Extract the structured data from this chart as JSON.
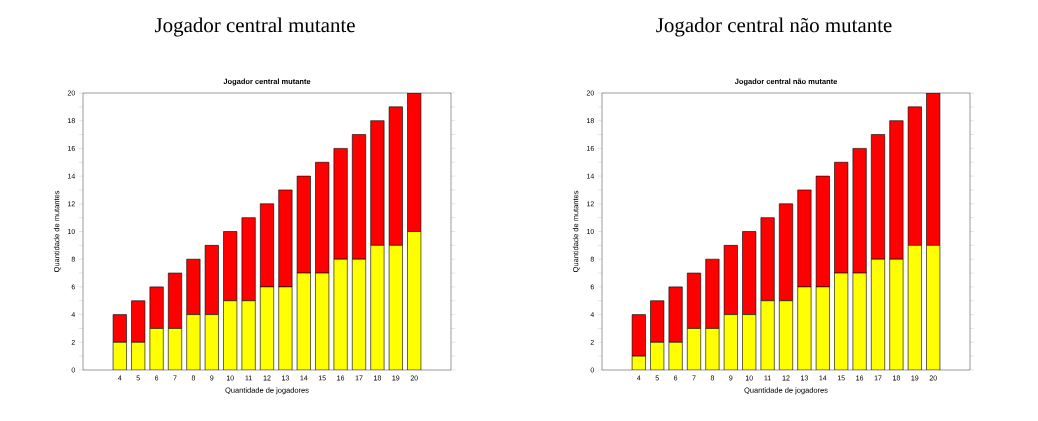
{
  "chart_data": [
    {
      "type": "bar",
      "title": "Jogador central mutante",
      "subtitle": "Jogador central mutante",
      "xlabel": "Quantidade de jogadores",
      "ylabel": "Quantidade de mutantes",
      "stacked": true,
      "x": [
        4,
        5,
        6,
        7,
        8,
        9,
        10,
        11,
        12,
        13,
        14,
        15,
        16,
        17,
        18,
        19,
        20
      ],
      "series": [
        {
          "color": "#ffff00",
          "values": [
            2,
            2,
            3,
            3,
            4,
            4,
            5,
            5,
            6,
            6,
            7,
            7,
            8,
            8,
            9,
            9,
            10
          ]
        },
        {
          "color": "#ff0000",
          "values": [
            2,
            3,
            3,
            4,
            4,
            5,
            5,
            6,
            6,
            7,
            7,
            8,
            8,
            9,
            9,
            10,
            10
          ]
        }
      ],
      "xlim": [
        2,
        22
      ],
      "xticks": [
        4,
        5,
        6,
        7,
        8,
        9,
        10,
        11,
        12,
        13,
        14,
        15,
        16,
        17,
        18,
        19,
        20
      ],
      "ylim": [
        0,
        20
      ],
      "yticks": [
        0,
        {
          "value": 1,
          "label": null
        },
        2,
        {
          "value": 3,
          "label": null
        },
        4,
        {
          "value": 5,
          "label": null
        },
        6,
        {
          "value": 7,
          "label": null
        },
        8,
        {
          "value": 9,
          "label": null
        },
        10,
        {
          "value": 11,
          "label": null
        },
        12,
        {
          "value": 13,
          "label": null
        },
        14,
        {
          "value": 15,
          "label": null
        },
        16,
        {
          "value": 17,
          "label": null
        },
        18,
        {
          "value": 19,
          "label": null
        },
        20
      ]
    },
    {
      "type": "bar",
      "title": "Jogador central não mutante",
      "subtitle": "Jogador central não mutante",
      "xlabel": "Quantidade de jogadores",
      "ylabel": "Quantidade de mutantes",
      "stacked": true,
      "x": [
        4,
        5,
        6,
        7,
        8,
        9,
        10,
        11,
        12,
        13,
        14,
        15,
        16,
        17,
        18,
        19,
        20
      ],
      "series": [
        {
          "color": "#ffff00",
          "values": [
            1,
            2,
            2,
            3,
            3,
            4,
            4,
            5,
            5,
            6,
            6,
            7,
            7,
            8,
            8,
            9,
            9
          ]
        },
        {
          "color": "#ff0000",
          "values": [
            3,
            3,
            4,
            4,
            5,
            5,
            6,
            6,
            7,
            7,
            8,
            8,
            9,
            9,
            10,
            10,
            11
          ]
        }
      ],
      "xlim": [
        2,
        22
      ],
      "xticks": [
        4,
        5,
        6,
        7,
        8,
        9,
        10,
        11,
        12,
        13,
        14,
        15,
        16,
        17,
        18,
        19,
        20
      ],
      "ylim": [
        0,
        20
      ],
      "yticks": [
        0,
        {
          "value": 1,
          "label": null
        },
        2,
        {
          "value": 3,
          "label": null
        },
        4,
        {
          "value": 5,
          "label": null
        },
        6,
        {
          "value": 7,
          "label": null
        },
        8,
        {
          "value": 9,
          "label": null
        },
        10,
        {
          "value": 11,
          "label": null
        },
        12,
        {
          "value": 13,
          "label": null
        },
        14,
        {
          "value": 15,
          "label": null
        },
        16,
        {
          "value": 17,
          "label": null
        },
        18,
        {
          "value": 19,
          "label": null
        },
        20
      ]
    }
  ]
}
